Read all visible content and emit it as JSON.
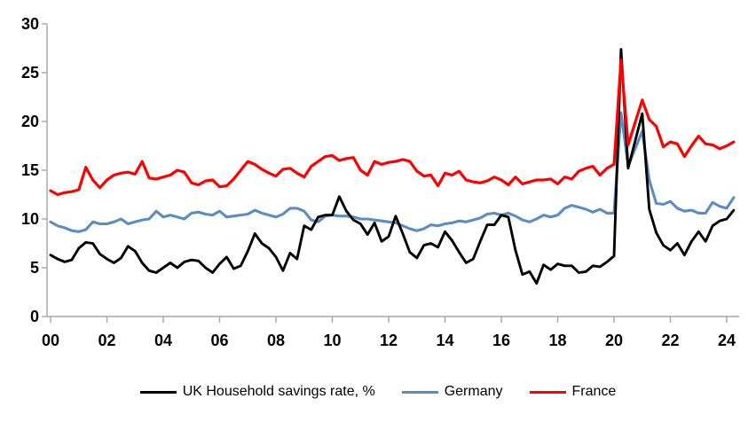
{
  "chart_data": {
    "type": "line",
    "title": "",
    "xlabel": "",
    "ylabel": "",
    "x_frequency": "quarterly",
    "x_tick_labels": [
      "00",
      "02",
      "04",
      "06",
      "08",
      "10",
      "12",
      "14",
      "16",
      "18",
      "20",
      "22",
      "24"
    ],
    "y_ticks": [
      0,
      5,
      10,
      15,
      20,
      25,
      30
    ],
    "ylim": [
      0,
      30
    ],
    "grid": false,
    "legend_position": "bottom",
    "axis_color": "#A6A6A6",
    "series": [
      {
        "name": "UK Household savings rate, %",
        "color": "#000000",
        "values": [
          6.3,
          5.9,
          5.6,
          5.8,
          7.0,
          7.6,
          7.5,
          6.4,
          5.9,
          5.5,
          6.0,
          7.2,
          6.7,
          5.5,
          4.7,
          4.5,
          5.0,
          5.5,
          5.0,
          5.6,
          5.8,
          5.7,
          5.0,
          4.5,
          5.4,
          6.1,
          4.9,
          5.2,
          6.7,
          8.5,
          7.5,
          7.0,
          6.1,
          4.7,
          6.5,
          5.9,
          9.3,
          8.9,
          10.2,
          10.4,
          10.4,
          12.3,
          10.8,
          9.9,
          9.5,
          8.4,
          9.6,
          7.7,
          8.2,
          10.3,
          8.5,
          6.6,
          6.0,
          7.3,
          7.5,
          7.1,
          8.7,
          7.8,
          6.6,
          5.5,
          5.9,
          7.7,
          9.4,
          9.4,
          10.4,
          10.2,
          6.8,
          4.3,
          4.6,
          3.4,
          5.3,
          4.8,
          5.4,
          5.2,
          5.2,
          4.5,
          4.6,
          5.2,
          5.1,
          5.6,
          6.2,
          27.4,
          15.2,
          18.0,
          20.8,
          11.0,
          8.6,
          7.3,
          6.8,
          7.5,
          6.3,
          7.7,
          8.7,
          7.7,
          9.3,
          9.8,
          10.0,
          10.9
        ]
      },
      {
        "name": "Germany",
        "color": "#5A8DC3",
        "values": [
          9.7,
          9.3,
          9.1,
          8.8,
          8.7,
          8.9,
          9.7,
          9.5,
          9.5,
          9.7,
          10.0,
          9.5,
          9.7,
          9.9,
          10.0,
          10.8,
          10.2,
          10.4,
          10.2,
          10.0,
          10.6,
          10.7,
          10.5,
          10.4,
          10.8,
          10.2,
          10.3,
          10.4,
          10.5,
          10.9,
          10.6,
          10.4,
          10.2,
          10.5,
          11.1,
          11.1,
          10.8,
          9.9,
          9.7,
          10.3,
          10.4,
          10.3,
          10.3,
          10.2,
          10.0,
          10.0,
          9.9,
          9.8,
          9.7,
          9.6,
          9.3,
          9.0,
          8.8,
          9.0,
          9.4,
          9.3,
          9.5,
          9.6,
          9.8,
          9.7,
          9.9,
          10.1,
          10.5,
          10.6,
          10.4,
          10.6,
          10.3,
          9.9,
          9.7,
          10.0,
          10.4,
          10.2,
          10.4,
          11.1,
          11.4,
          11.2,
          11.0,
          10.7,
          11.0,
          10.6,
          10.6,
          20.9,
          15.4,
          17.2,
          19.0,
          14.0,
          11.6,
          11.5,
          11.8,
          11.1,
          10.8,
          10.9,
          10.6,
          10.6,
          11.7,
          11.3,
          11.1,
          12.2
        ]
      },
      {
        "name": "France",
        "color": "#FF0000",
        "values": [
          12.9,
          12.5,
          12.7,
          12.8,
          13.0,
          15.3,
          14.0,
          13.2,
          14.0,
          14.5,
          14.7,
          14.8,
          14.6,
          15.9,
          14.2,
          14.1,
          14.3,
          14.5,
          15.0,
          14.8,
          13.7,
          13.5,
          13.9,
          14.0,
          13.3,
          13.4,
          14.1,
          15.0,
          15.9,
          15.6,
          15.1,
          14.7,
          14.4,
          15.1,
          15.2,
          14.7,
          14.3,
          15.4,
          15.9,
          16.4,
          16.5,
          16.0,
          16.2,
          16.3,
          15.0,
          14.5,
          15.9,
          15.6,
          15.8,
          15.9,
          16.1,
          15.9,
          14.9,
          14.4,
          14.5,
          13.4,
          14.7,
          14.5,
          14.9,
          14.0,
          13.8,
          13.7,
          13.9,
          14.3,
          14.0,
          13.5,
          14.3,
          13.6,
          13.8,
          14.0,
          14.0,
          14.1,
          13.6,
          14.3,
          14.1,
          14.9,
          15.2,
          15.4,
          14.5,
          15.2,
          15.6,
          26.3,
          17.6,
          19.9,
          22.2,
          20.2,
          19.5,
          17.4,
          17.9,
          17.7,
          16.4,
          17.5,
          18.5,
          17.7,
          17.6,
          17.2,
          17.5,
          17.9
        ]
      }
    ]
  }
}
